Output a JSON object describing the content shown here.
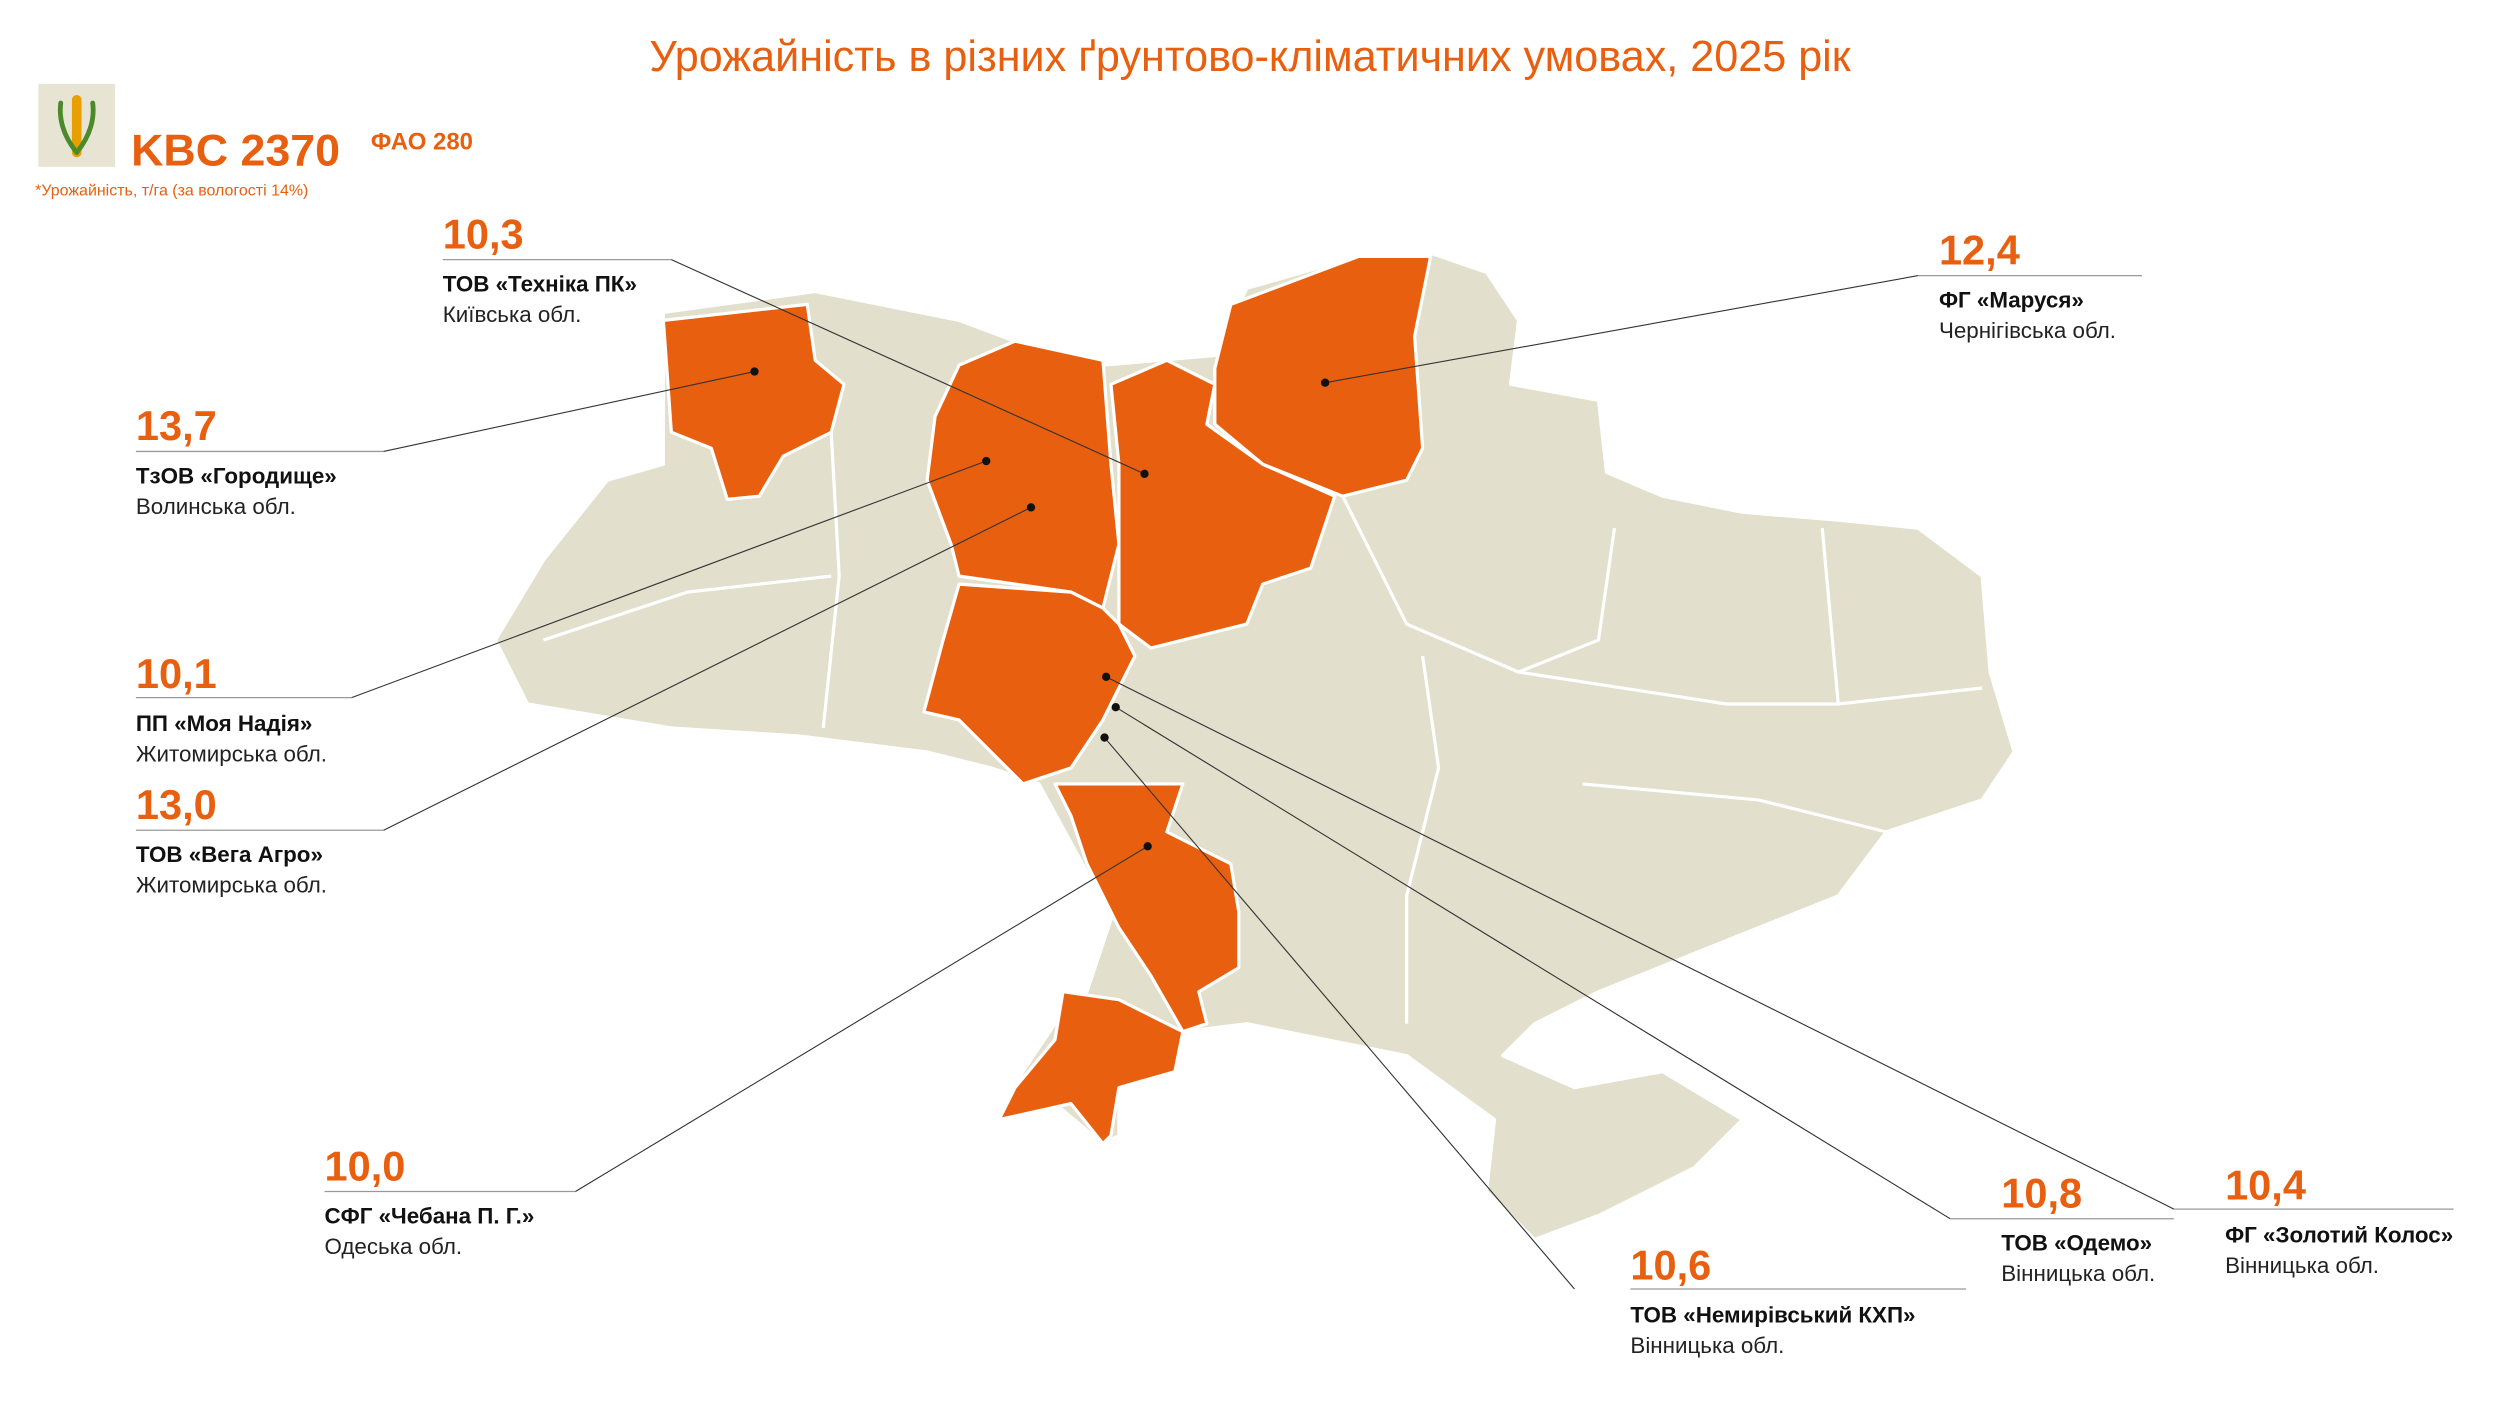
{
  "header": {
    "title": "Урожайність в різних ґрунтово-кліматичних умовах, 2025 рік",
    "product": "KBC 2370",
    "fao": "ФАО 280",
    "note": "*Урожайність, т/га (за вологості 14%)"
  },
  "farms": [
    {
      "value": "10,3",
      "name": "ТОВ «Техніка ПК»",
      "region": "Київська обл."
    },
    {
      "value": "12,4",
      "name": "ФГ «Маруся»",
      "region": "Чернігівська обл."
    },
    {
      "value": "13,7",
      "name": "ТзОВ «Городище»",
      "region": "Волинська обл."
    },
    {
      "value": "10,1",
      "name": "ПП «Моя Надія»",
      "region": "Житомирська обл."
    },
    {
      "value": "13,0",
      "name": "ТОВ «Вега Агро»",
      "region": "Житомирська обл."
    },
    {
      "value": "10,0",
      "name": "СФГ «Чебана П. Г.»",
      "region": "Одеська обл."
    },
    {
      "value": "10,6",
      "name": "ТОВ «Немирівський КХП»",
      "region": "Вінницька обл."
    },
    {
      "value": "10,8",
      "name": "ТОВ «Одемо»",
      "region": "Вінницька обл."
    },
    {
      "value": "10,4",
      "name": "ФГ «Золотий Колос»",
      "region": "Вінницька обл."
    }
  ]
}
